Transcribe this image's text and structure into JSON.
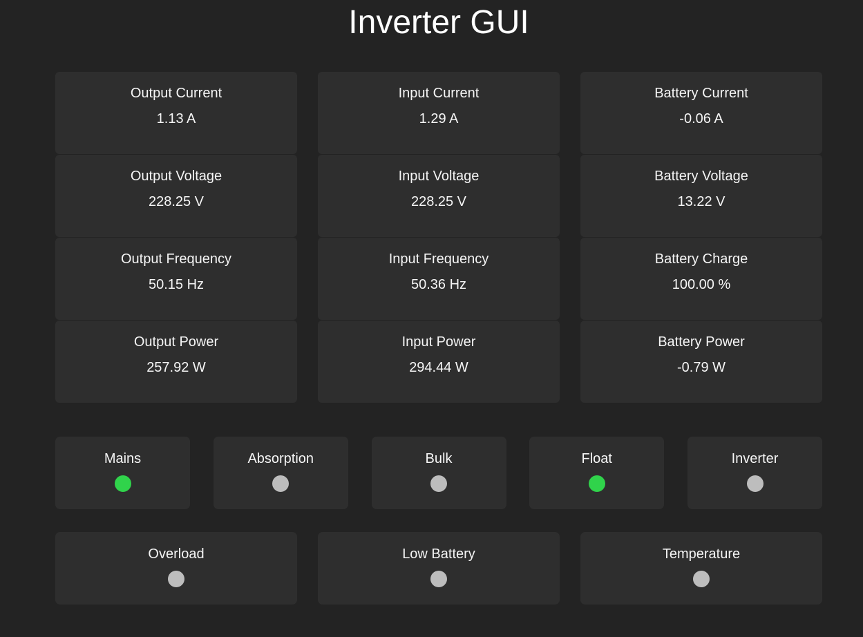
{
  "title": "Inverter GUI",
  "colors": {
    "page_bg": "#232323",
    "card_bg": "#2e2e2e",
    "text": "#f5f5f5",
    "led_on": "#30d34b",
    "led_off": "#bdbdbd"
  },
  "metrics": {
    "columns": [
      {
        "cells": [
          {
            "label": "Output Current",
            "value": "1.13 A"
          },
          {
            "label": "Output Voltage",
            "value": "228.25 V"
          },
          {
            "label": "Output Frequency",
            "value": "50.15 Hz"
          },
          {
            "label": "Output Power",
            "value": "257.92 W"
          }
        ]
      },
      {
        "cells": [
          {
            "label": "Input Current",
            "value": "1.29 A"
          },
          {
            "label": "Input Voltage",
            "value": "228.25 V"
          },
          {
            "label": "Input Frequency",
            "value": "50.36 Hz"
          },
          {
            "label": "Input Power",
            "value": "294.44 W"
          }
        ]
      },
      {
        "cells": [
          {
            "label": "Battery Current",
            "value": "-0.06 A"
          },
          {
            "label": "Battery Voltage",
            "value": "13.22 V"
          },
          {
            "label": "Battery Charge",
            "value": "100.00 %"
          },
          {
            "label": "Battery Power",
            "value": "-0.79 W"
          }
        ]
      }
    ]
  },
  "status_row": [
    {
      "label": "Mains",
      "state": "on"
    },
    {
      "label": "Absorption",
      "state": "off"
    },
    {
      "label": "Bulk",
      "state": "off"
    },
    {
      "label": "Float",
      "state": "on"
    },
    {
      "label": "Inverter",
      "state": "off"
    }
  ],
  "alarm_row": [
    {
      "label": "Overload",
      "state": "off"
    },
    {
      "label": "Low Battery",
      "state": "off"
    },
    {
      "label": "Temperature",
      "state": "off"
    }
  ]
}
